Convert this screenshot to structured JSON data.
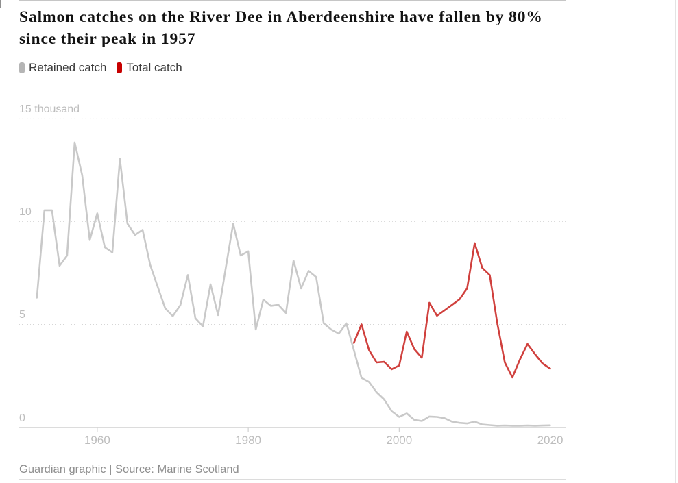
{
  "header": {
    "title": "Salmon catches on the River Dee in Aberdeenshire have fallen by 80% since their peak in 1957"
  },
  "legend": {
    "items": [
      {
        "label": "Retained catch",
        "swatch_color": "#b5b5b5"
      },
      {
        "label": "Total catch",
        "swatch_color": "#c70000"
      }
    ]
  },
  "footer": {
    "credit": "Guardian graphic | Source: Marine Scotland"
  },
  "chart_data": {
    "type": "line",
    "title": "Salmon catches on the River Dee in Aberdeenshire have fallen by 80% since their peak in 1957",
    "xlabel": "",
    "ylabel": "thousand",
    "x_range": [
      1952,
      2020
    ],
    "ylim": [
      0,
      15
    ],
    "grid": "horizontal-dotted",
    "legend_position": "top-left",
    "yticks": [
      {
        "value": 0,
        "label": "0"
      },
      {
        "value": 5,
        "label": "5"
      },
      {
        "value": 10,
        "label": "10"
      },
      {
        "value": 15,
        "label": "15 thousand"
      }
    ],
    "xticks": [
      {
        "value": 1960,
        "label": "1960"
      },
      {
        "value": 1980,
        "label": "1980"
      },
      {
        "value": 2000,
        "label": "2000"
      },
      {
        "value": 2020,
        "label": "2020"
      }
    ],
    "series": [
      {
        "name": "Retained catch",
        "color": "#c9c9c9",
        "start_year": 1952,
        "values": [
          6.3,
          10.55,
          10.55,
          7.85,
          8.35,
          13.85,
          12.25,
          9.1,
          10.4,
          8.75,
          8.5,
          13.05,
          9.9,
          9.35,
          9.6,
          7.9,
          6.83,
          5.78,
          5.4,
          5.93,
          7.4,
          5.3,
          4.9,
          6.95,
          5.45,
          7.7,
          9.9,
          8.35,
          8.55,
          4.75,
          6.2,
          5.9,
          5.95,
          5.55,
          8.1,
          6.75,
          7.6,
          7.3,
          5.05,
          4.75,
          4.55,
          5.05,
          3.75,
          2.4,
          2.2,
          1.7,
          1.35,
          0.78,
          0.5,
          0.67,
          0.36,
          0.3,
          0.52,
          0.5,
          0.44,
          0.27,
          0.21,
          0.18,
          0.27,
          0.13,
          0.1,
          0.07,
          0.08,
          0.07,
          0.07,
          0.08,
          0.07,
          0.08,
          0.09
        ]
      },
      {
        "name": "Total catch",
        "color": "#d0403d",
        "start_year": 1994,
        "values": [
          4.1,
          5.0,
          3.75,
          3.15,
          3.18,
          2.82,
          3.0,
          4.65,
          3.8,
          3.38,
          6.05,
          5.42,
          5.68,
          5.95,
          6.22,
          6.75,
          8.95,
          7.75,
          7.4,
          5.05,
          3.15,
          2.42,
          3.3,
          4.05,
          3.55,
          3.1,
          2.85
        ]
      }
    ]
  }
}
